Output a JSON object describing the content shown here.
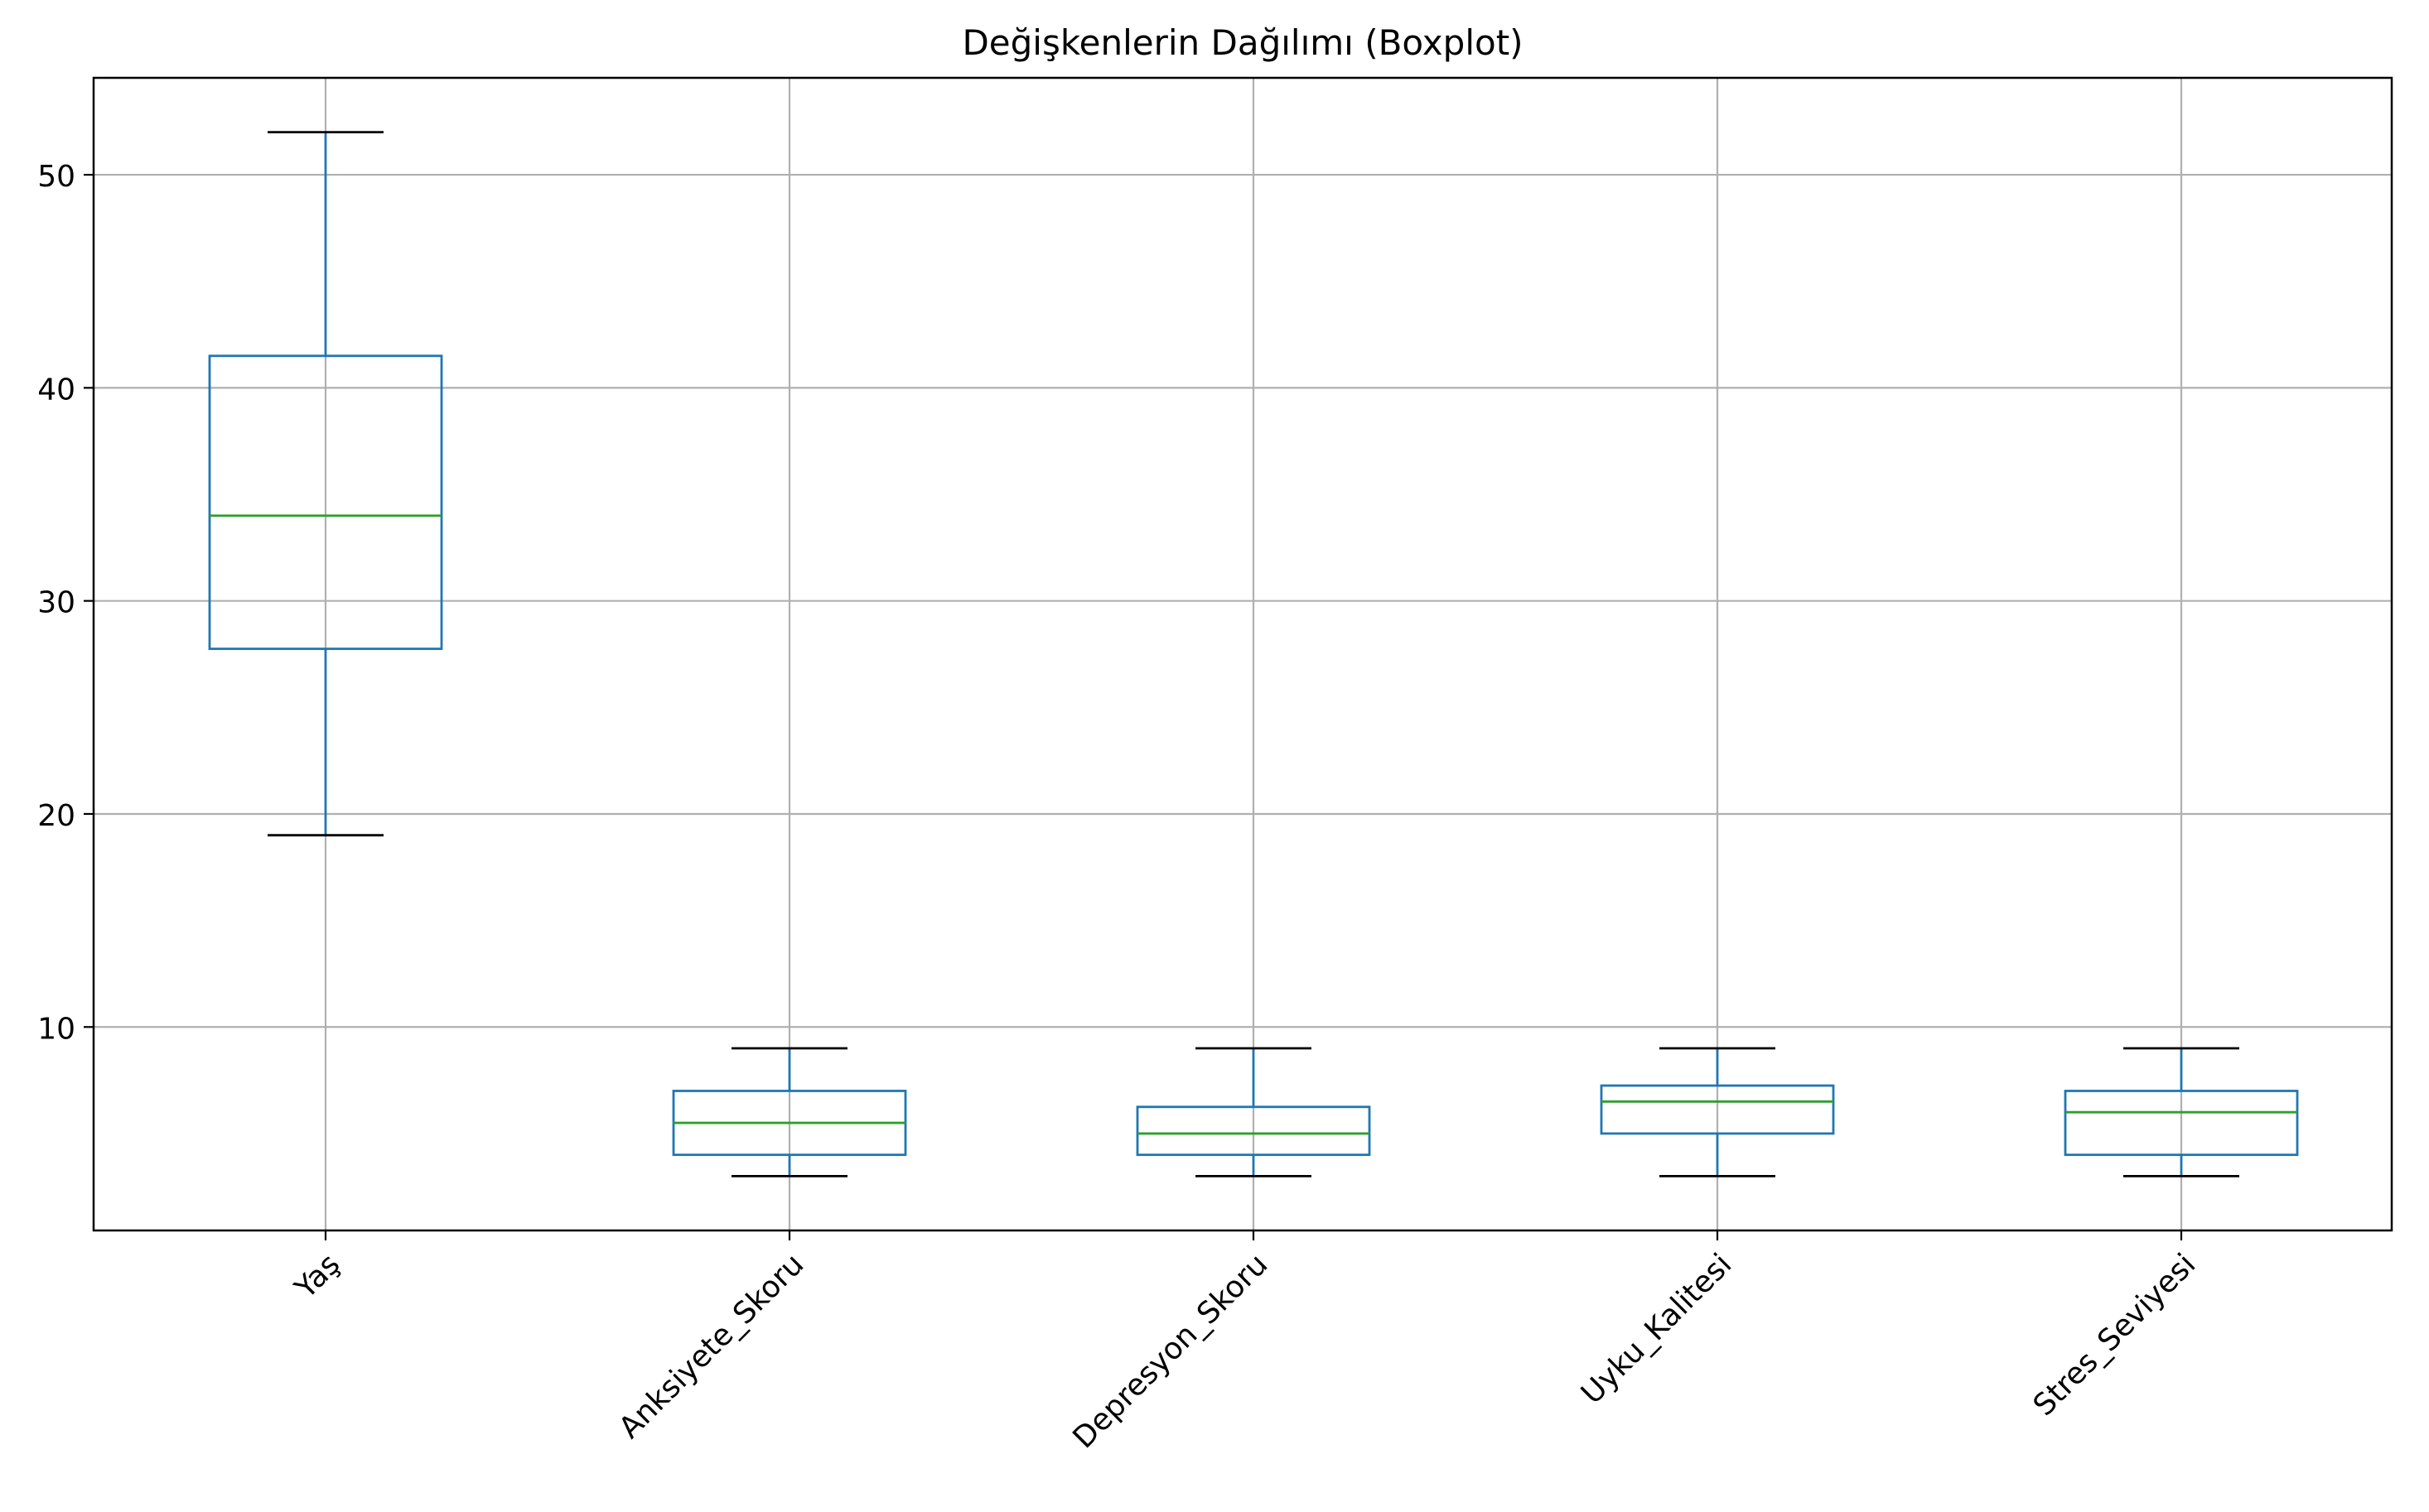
{
  "chart_data": {
    "type": "boxplot",
    "title": "Değişkenlerin Dağılımı (Boxplot)",
    "xlabel": "",
    "ylabel": "",
    "categories": [
      "Yaş",
      "Anksiyete_Skoru",
      "Depresyon_Skoru",
      "Uyku_Kalitesi",
      "Stres_Seviyesi"
    ],
    "boxes": [
      {
        "whisker_low": 19,
        "q1": 27.75,
        "median": 34,
        "q3": 41.5,
        "whisker_high": 52
      },
      {
        "whisker_low": 3,
        "q1": 4,
        "median": 5.5,
        "q3": 7,
        "whisker_high": 9
      },
      {
        "whisker_low": 3,
        "q1": 4,
        "median": 5,
        "q3": 6.25,
        "whisker_high": 9
      },
      {
        "whisker_low": 3,
        "q1": 5,
        "median": 6.5,
        "q3": 7.25,
        "whisker_high": 9
      },
      {
        "whisker_low": 3,
        "q1": 4,
        "median": 6,
        "q3": 7,
        "whisker_high": 9
      }
    ],
    "yticks": [
      10,
      20,
      30,
      40,
      50
    ],
    "ylim": [
      0.45,
      54.55
    ],
    "grid": true,
    "xtick_rotation": 45,
    "colors": {
      "box": "#1f77b4",
      "median": "#2ca02c",
      "cap": "#000000",
      "grid": "#b0b0b0"
    }
  }
}
